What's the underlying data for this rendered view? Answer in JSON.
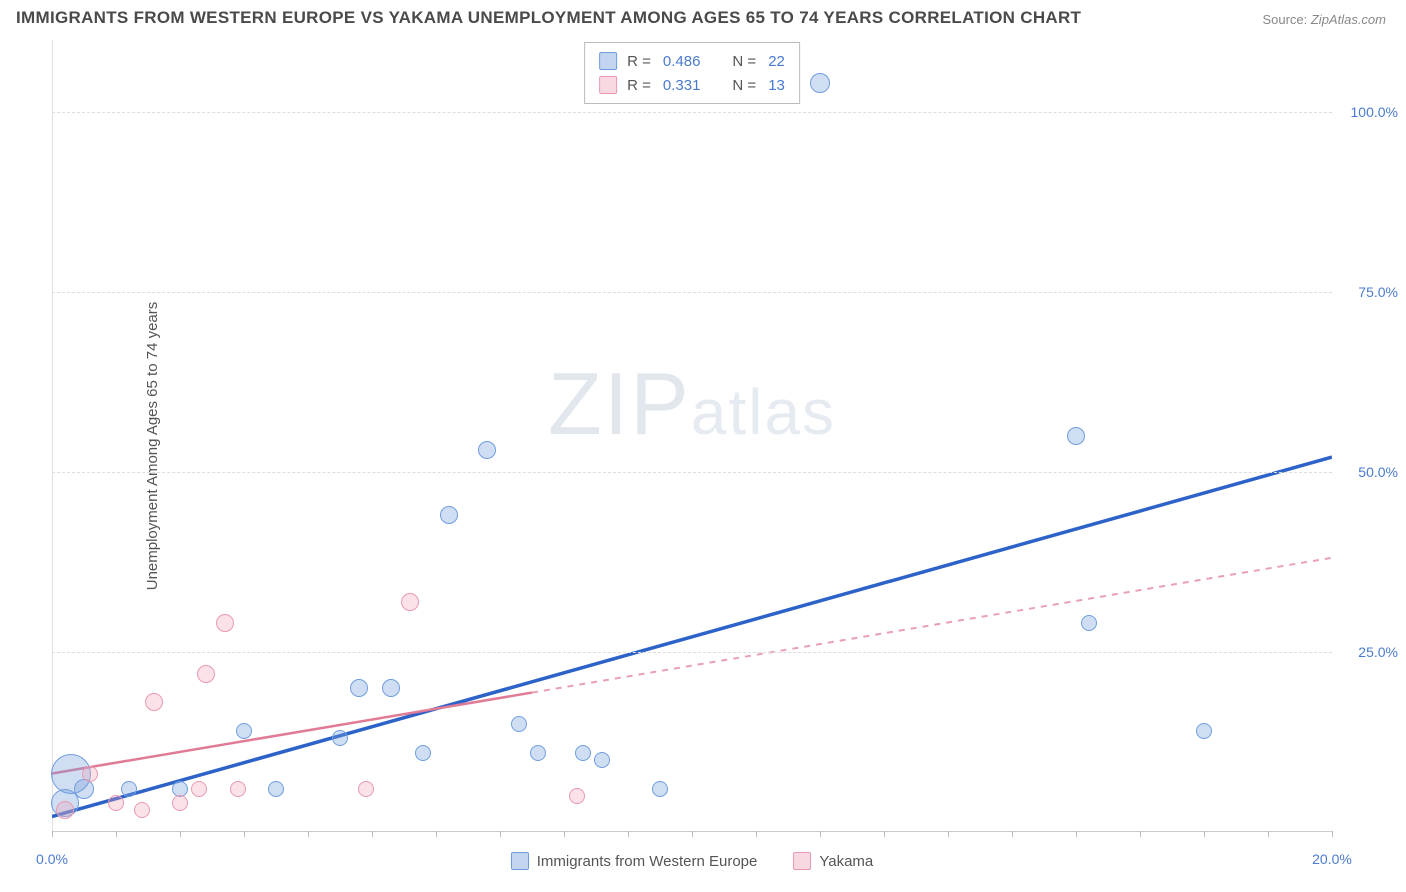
{
  "title": "IMMIGRANTS FROM WESTERN EUROPE VS YAKAMA UNEMPLOYMENT AMONG AGES 65 TO 74 YEARS CORRELATION CHART",
  "source_prefix": "Source: ",
  "source": "ZipAtlas.com",
  "y_axis_label": "Unemployment Among Ages 65 to 74 years",
  "watermark_a": "ZIP",
  "watermark_b": "atlas",
  "chart": {
    "type": "scatter",
    "xlim": [
      0,
      20
    ],
    "ylim": [
      0,
      110
    ],
    "x_ticks": [
      0,
      20
    ],
    "x_tick_labels": [
      "0.0%",
      "20.0%"
    ],
    "x_minor_ticks": [
      0,
      1,
      2,
      3,
      4,
      5,
      6,
      7,
      8,
      9,
      10,
      11,
      12,
      13,
      14,
      15,
      16,
      17,
      18,
      19,
      20
    ],
    "y_ticks": [
      25,
      50,
      75,
      100
    ],
    "y_tick_labels": [
      "25.0%",
      "50.0%",
      "75.0%",
      "100.0%"
    ],
    "background_color": "#ffffff",
    "grid_color": "#dddddd",
    "axis_label_color": "#4a7bd0",
    "series": [
      {
        "name": "Immigrants from Western Europe",
        "color_fill": "rgba(120,160,220,0.35)",
        "color_stroke": "#6f9de0",
        "class": "pt-blue",
        "R": "0.486",
        "N": "22",
        "trend": {
          "x1": 0,
          "y1": 2,
          "x2": 20,
          "y2": 52,
          "solid_until_x": 20
        },
        "points": [
          {
            "x": 0.2,
            "y": 4,
            "r": 14
          },
          {
            "x": 0.5,
            "y": 6,
            "r": 10
          },
          {
            "x": 0.3,
            "y": 8,
            "r": 20
          },
          {
            "x": 1.2,
            "y": 6,
            "r": 8
          },
          {
            "x": 2.0,
            "y": 6,
            "r": 8
          },
          {
            "x": 3.0,
            "y": 14,
            "r": 8
          },
          {
            "x": 3.5,
            "y": 6,
            "r": 8
          },
          {
            "x": 4.5,
            "y": 13,
            "r": 8
          },
          {
            "x": 4.8,
            "y": 20,
            "r": 9
          },
          {
            "x": 5.3,
            "y": 20,
            "r": 9
          },
          {
            "x": 5.8,
            "y": 11,
            "r": 8
          },
          {
            "x": 6.2,
            "y": 44,
            "r": 9
          },
          {
            "x": 6.8,
            "y": 53,
            "r": 9
          },
          {
            "x": 7.3,
            "y": 15,
            "r": 8
          },
          {
            "x": 7.6,
            "y": 11,
            "r": 8
          },
          {
            "x": 8.3,
            "y": 11,
            "r": 8
          },
          {
            "x": 8.6,
            "y": 10,
            "r": 8
          },
          {
            "x": 9.5,
            "y": 6,
            "r": 8
          },
          {
            "x": 12.0,
            "y": 104,
            "r": 10
          },
          {
            "x": 16.0,
            "y": 55,
            "r": 9
          },
          {
            "x": 16.2,
            "y": 29,
            "r": 8
          },
          {
            "x": 18.0,
            "y": 14,
            "r": 8
          }
        ]
      },
      {
        "name": "Yakama",
        "color_fill": "rgba(240,160,180,0.30)",
        "color_stroke": "#e99ab0",
        "class": "pt-pink",
        "R": "0.331",
        "N": "13",
        "trend": {
          "x1": 0,
          "y1": 8,
          "x2": 20,
          "y2": 38,
          "solid_until_x": 7.5
        },
        "points": [
          {
            "x": 0.2,
            "y": 3,
            "r": 9
          },
          {
            "x": 0.6,
            "y": 8,
            "r": 8
          },
          {
            "x": 1.0,
            "y": 4,
            "r": 8
          },
          {
            "x": 1.4,
            "y": 3,
            "r": 8
          },
          {
            "x": 1.6,
            "y": 18,
            "r": 9
          },
          {
            "x": 2.0,
            "y": 4,
            "r": 8
          },
          {
            "x": 2.3,
            "y": 6,
            "r": 8
          },
          {
            "x": 2.4,
            "y": 22,
            "r": 9
          },
          {
            "x": 2.7,
            "y": 29,
            "r": 9
          },
          {
            "x": 2.9,
            "y": 6,
            "r": 8
          },
          {
            "x": 4.9,
            "y": 6,
            "r": 8
          },
          {
            "x": 5.6,
            "y": 32,
            "r": 9
          },
          {
            "x": 8.2,
            "y": 5,
            "r": 8
          }
        ]
      }
    ]
  },
  "legend_box": {
    "rows": [
      {
        "swatch": "sw-blue",
        "r_label": "R =",
        "r_val": "0.486",
        "n_label": "N =",
        "n_val": "22"
      },
      {
        "swatch": "sw-pink",
        "r_label": "R =",
        "r_val": "0.331",
        "n_label": "N =",
        "n_val": "13"
      }
    ]
  },
  "bottom_legend": [
    {
      "swatch": "sw-blue",
      "label": "Immigrants from Western Europe"
    },
    {
      "swatch": "sw-pink",
      "label": "Yakama"
    }
  ]
}
